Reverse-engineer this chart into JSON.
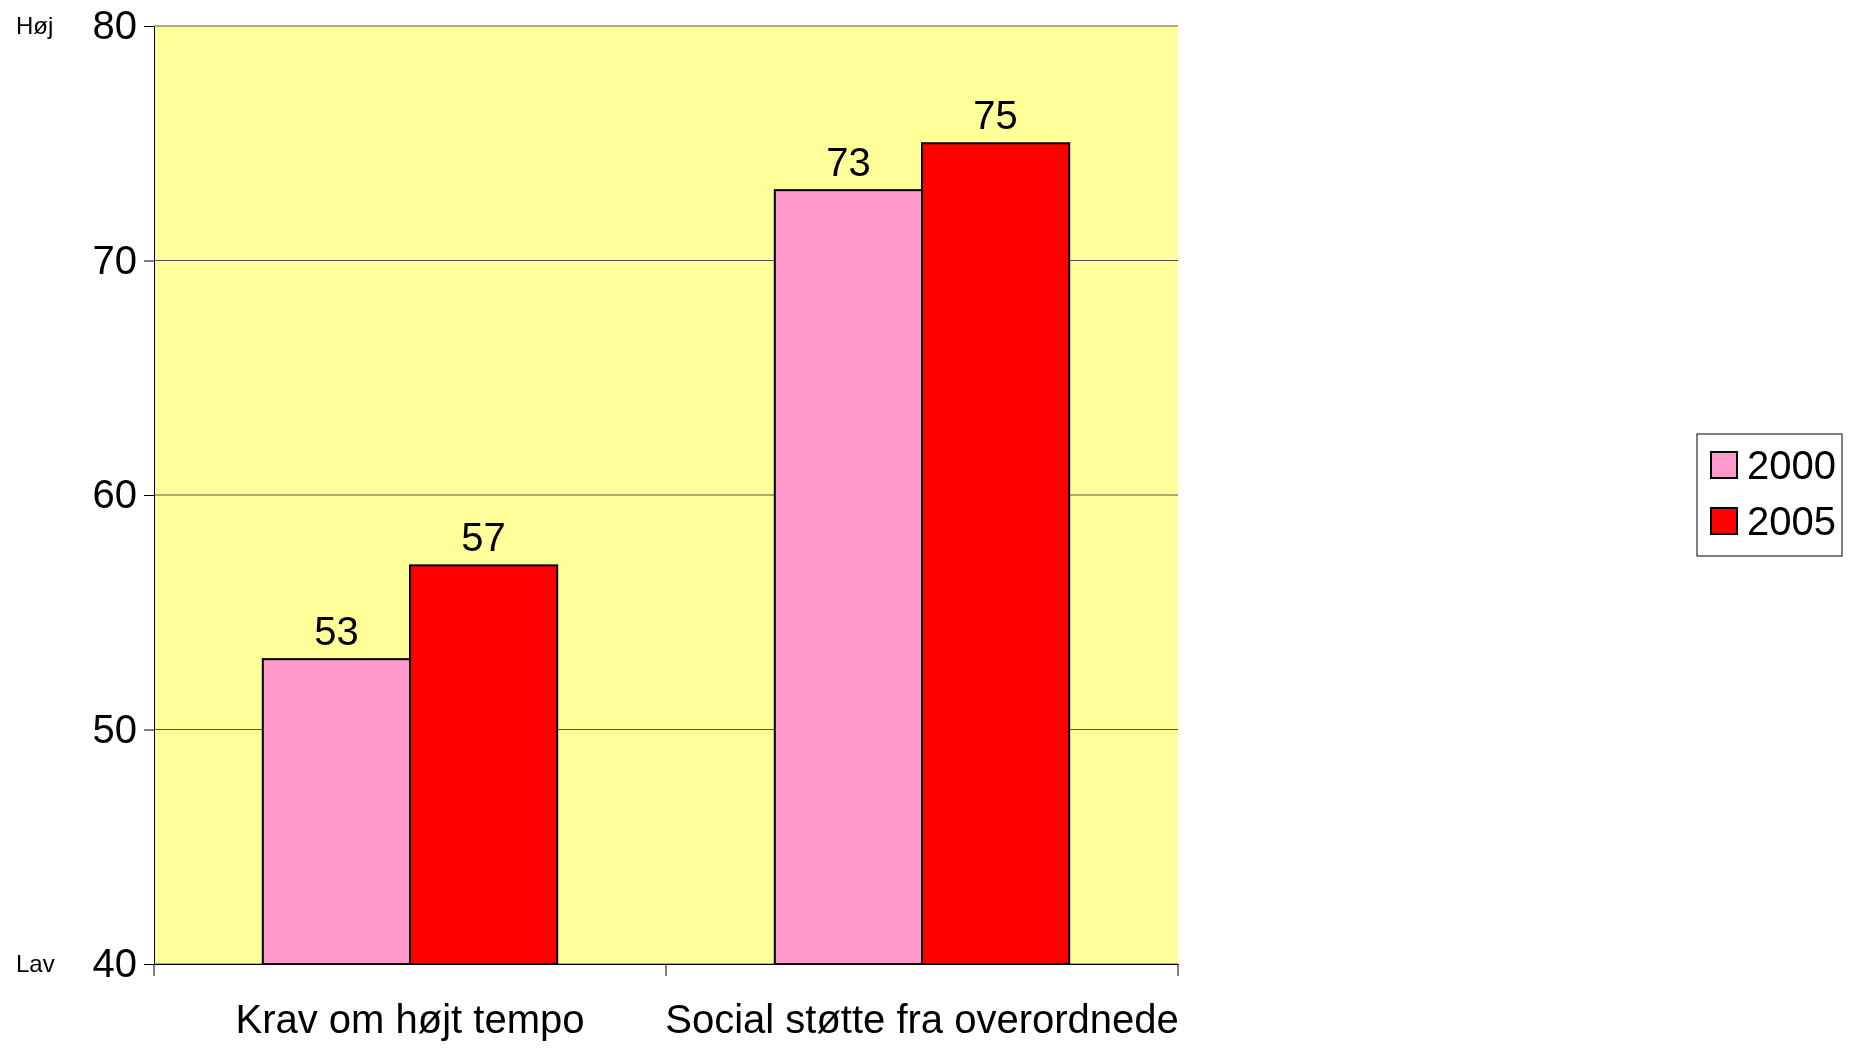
{
  "chart_data": {
    "type": "bar",
    "categories": [
      "Krav om højt tempo",
      "Social støtte fra overordnede"
    ],
    "series": [
      {
        "name": "2000",
        "color": "#ff99cc",
        "values": [
          53,
          73
        ]
      },
      {
        "name": "2005",
        "color": "#ff0000",
        "values": [
          57,
          75
        ]
      }
    ],
    "ylim": [
      40,
      80
    ],
    "yticks": [
      40,
      50,
      60,
      70,
      80
    ],
    "grid": "y",
    "legend": "right",
    "data_labels": true,
    "annotations": [
      "Høj",
      "Lav"
    ]
  }
}
